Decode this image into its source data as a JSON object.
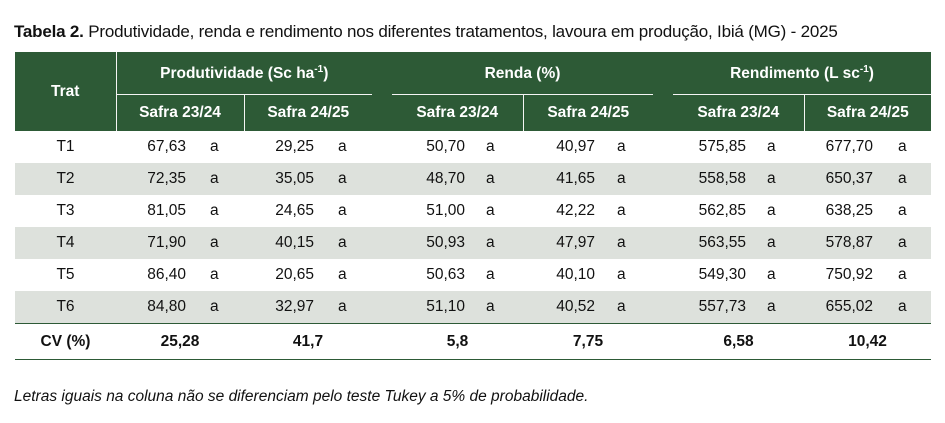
{
  "caption": {
    "label": "Tabela 2.",
    "text": " Produtividade, renda e rendimento nos diferentes tratamentos, lavoura em produção, Ibiá (MG) - 2025"
  },
  "header": {
    "trat": "Trat",
    "groups": [
      {
        "label": "Produtividade (Sc ha",
        "sup": "-1",
        "tail": ")"
      },
      {
        "label": "Renda (%)",
        "sup": "",
        "tail": ""
      },
      {
        "label": "Rendimento (L sc",
        "sup": "-1",
        "tail": ")"
      }
    ],
    "seasons": [
      "Safra 23/24",
      "Safra 24/25",
      "Safra 23/24",
      "Safra 24/25",
      "Safra 23/24",
      "Safra 24/25"
    ]
  },
  "rows": [
    {
      "trat": "T1",
      "cells": [
        [
          "67,63",
          "a"
        ],
        [
          "29,25",
          "a"
        ],
        [
          "50,70",
          "a"
        ],
        [
          "40,97",
          "a"
        ],
        [
          "575,85",
          "a"
        ],
        [
          "677,70",
          "a"
        ]
      ]
    },
    {
      "trat": "T2",
      "cells": [
        [
          "72,35",
          "a"
        ],
        [
          "35,05",
          "a"
        ],
        [
          "48,70",
          "a"
        ],
        [
          "41,65",
          "a"
        ],
        [
          "558,58",
          "a"
        ],
        [
          "650,37",
          "a"
        ]
      ]
    },
    {
      "trat": "T3",
      "cells": [
        [
          "81,05",
          "a"
        ],
        [
          "24,65",
          "a"
        ],
        [
          "51,00",
          "a"
        ],
        [
          "42,22",
          "a"
        ],
        [
          "562,85",
          "a"
        ],
        [
          "638,25",
          "a"
        ]
      ]
    },
    {
      "trat": "T4",
      "cells": [
        [
          "71,90",
          "a"
        ],
        [
          "40,15",
          "a"
        ],
        [
          "50,93",
          "a"
        ],
        [
          "47,97",
          "a"
        ],
        [
          "563,55",
          "a"
        ],
        [
          "578,87",
          "a"
        ]
      ]
    },
    {
      "trat": "T5",
      "cells": [
        [
          "86,40",
          "a"
        ],
        [
          "20,65",
          "a"
        ],
        [
          "50,63",
          "a"
        ],
        [
          "40,10",
          "a"
        ],
        [
          "549,30",
          "a"
        ],
        [
          "750,92",
          "a"
        ]
      ]
    },
    {
      "trat": "T6",
      "cells": [
        [
          "84,80",
          "a"
        ],
        [
          "32,97",
          "a"
        ],
        [
          "51,10",
          "a"
        ],
        [
          "40,52",
          "a"
        ],
        [
          "557,73",
          "a"
        ],
        [
          "655,02",
          "a"
        ]
      ]
    }
  ],
  "cv": {
    "label": "CV (%)",
    "values": [
      "25,28",
      "41,7",
      "5,8",
      "7,75",
      "6,58",
      "10,42"
    ]
  },
  "footnote": "Letras iguais na coluna não se diferenciam pelo teste Tukey a 5% de probabilidade.",
  "colors": {
    "header_bg": "#2d5a36",
    "stripe": "#dde1dc"
  }
}
